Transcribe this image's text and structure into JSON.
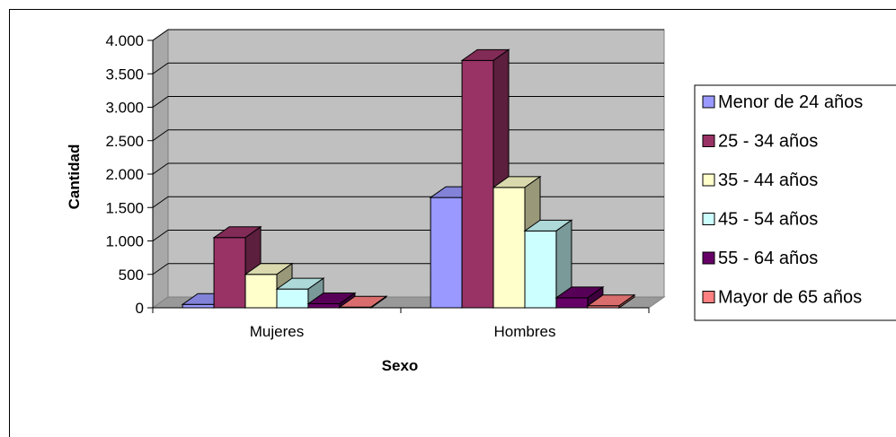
{
  "chart_data": {
    "type": "bar",
    "title": "",
    "xlabel": "Sexo",
    "ylabel": "Cantidad",
    "categories": [
      "Mujeres",
      "Hombres"
    ],
    "ylim": [
      0,
      4000
    ],
    "yticks": [
      0,
      500,
      1000,
      1500,
      2000,
      2500,
      3000,
      3500,
      4000
    ],
    "ytick_labels": [
      "0",
      "500",
      "1.000",
      "1.500",
      "2.000",
      "2.500",
      "3.000",
      "3.500",
      "4.000"
    ],
    "grid": true,
    "legend_position": "right",
    "style": "3d-clustered-column",
    "series": [
      {
        "name": "Menor de 24 años",
        "values": [
          50,
          1650
        ],
        "color": "#9999FF"
      },
      {
        "name": "25 - 34 años",
        "values": [
          1050,
          3700
        ],
        "color": "#993366"
      },
      {
        "name": "35 - 44 años",
        "values": [
          500,
          1800
        ],
        "color": "#FFFFCC"
      },
      {
        "name": "45 - 54 años",
        "values": [
          280,
          1150
        ],
        "color": "#CCFFFF"
      },
      {
        "name": "55 - 64 años",
        "values": [
          60,
          150
        ],
        "color": "#660066"
      },
      {
        "name": "Mayor de 65 años",
        "values": [
          10,
          30
        ],
        "color": "#FF8080"
      }
    ]
  }
}
